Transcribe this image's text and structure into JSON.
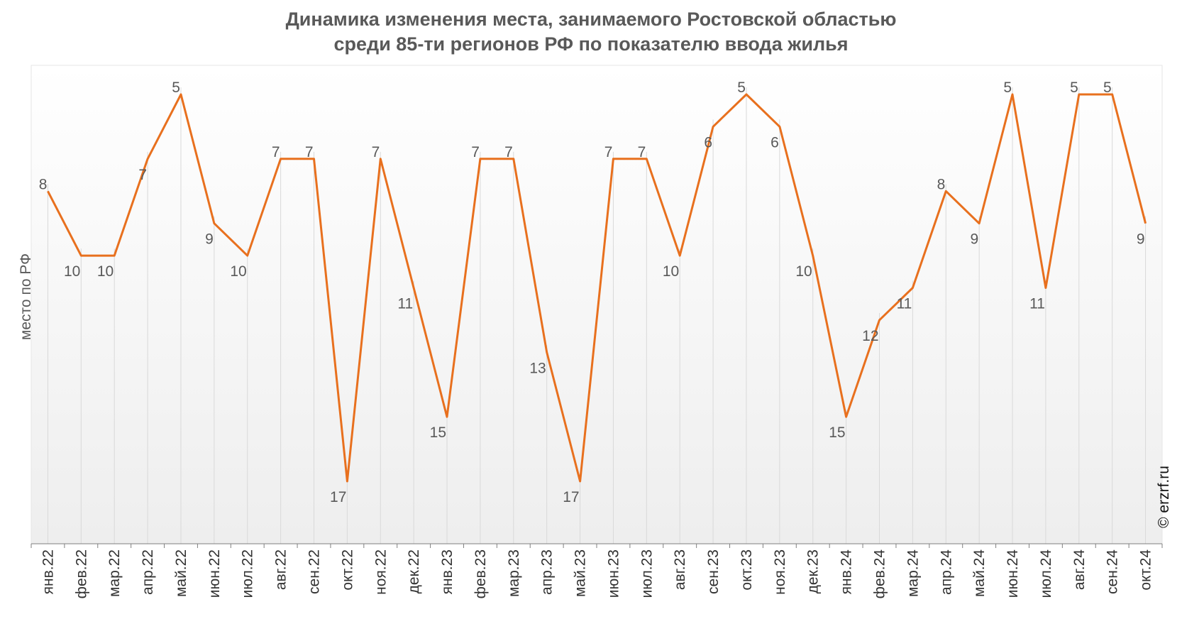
{
  "chart_data": {
    "type": "line",
    "title_lines": [
      "Динамика изменения места, занимаемого Ростовской областью",
      "среди 85-ти регионов РФ по показателю ввода жилья"
    ],
    "xlabel": "",
    "ylabel": "место по РФ",
    "y_inverted": true,
    "ylim": [
      4,
      18
    ],
    "grid": "vertical drop lines per category",
    "legend": "none",
    "categories": [
      "янв.22",
      "фев.22",
      "мар.22",
      "апр.22",
      "май.22",
      "июн.22",
      "июл.22",
      "авг.22",
      "сен.22",
      "окт.22",
      "ноя.22",
      "дек.22",
      "янв.23",
      "фев.23",
      "мар.23",
      "апр.23",
      "май.23",
      "июн.23",
      "июл.23",
      "авг.23",
      "сен.23",
      "окт.23",
      "ноя.23",
      "дек.23",
      "янв.24",
      "фев.24",
      "мар.24",
      "апр.24",
      "май.24",
      "июн.24",
      "июл.24",
      "авг.24",
      "сен.24",
      "окт.24"
    ],
    "series": [
      {
        "values": [
          8,
          10,
          10,
          7,
          5,
          9,
          10,
          7,
          7,
          17,
          7,
          11,
          15,
          7,
          7,
          13,
          17,
          7,
          7,
          10,
          6,
          5,
          6,
          10,
          15,
          12,
          11,
          8,
          9,
          5,
          11,
          5,
          5,
          9
        ],
        "color": "#E8701E"
      }
    ],
    "credit": "© erzrf.ru"
  }
}
